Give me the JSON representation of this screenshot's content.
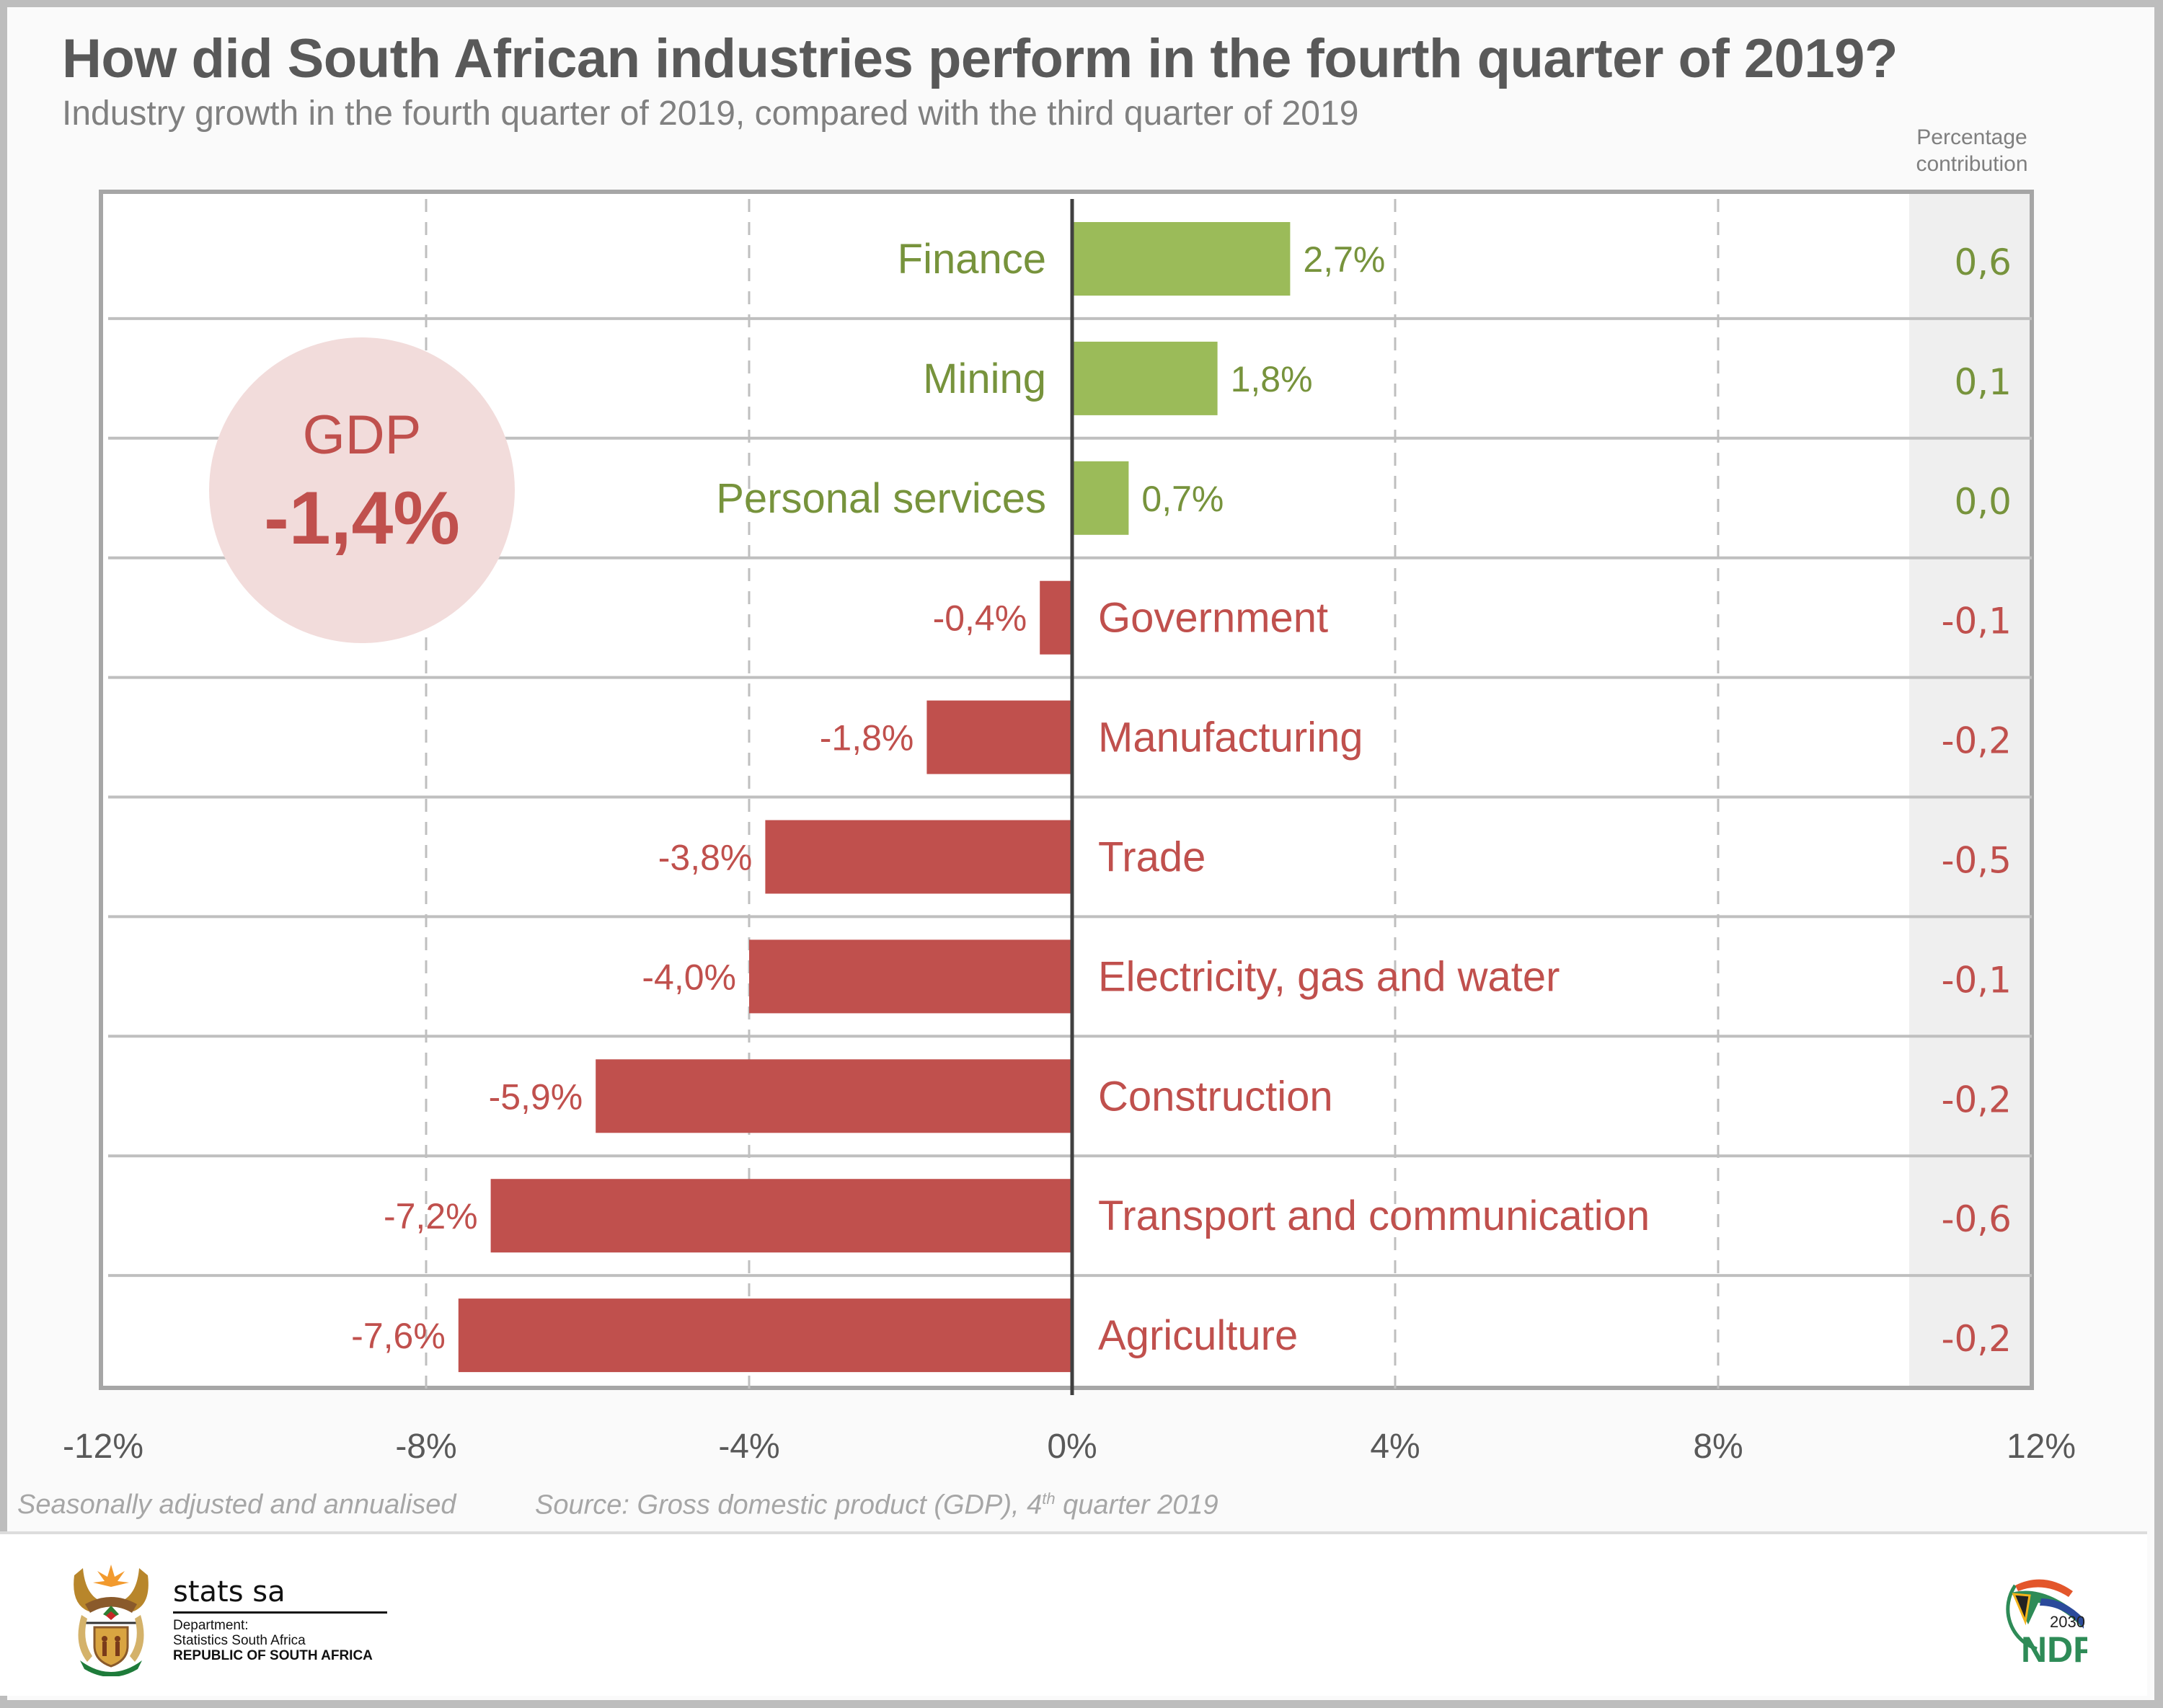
{
  "title": "How did South African industries perform in the fourth quarter of 2019?",
  "subtitle": "Industry growth in the fourth quarter of 2019, compared with the third quarter of 2019",
  "contribution_header": [
    "Percentage",
    "contribution"
  ],
  "gdp_badge": {
    "label": "GDP",
    "value": "-1,4%"
  },
  "footnotes": {
    "left": "Seasonally adjusted and annualised",
    "right_prefix": "Source: Gross domestic product (GDP), 4",
    "right_sup": "th",
    "right_suffix": " quarter 2019"
  },
  "footer": {
    "org_name": "stats sa",
    "dept_line1": "Department:",
    "dept_line2": "Statistics South Africa",
    "dept_line3": "REPUBLIC OF SOUTH AFRICA",
    "coat_of_arms_motto": "!KE E: /XARRA //KE",
    "ndp_logo_year": "2030",
    "ndp_logo_text": "NDP"
  },
  "colors": {
    "positive_bar": "#9bbb59",
    "positive_text": "#77933c",
    "negative_bar": "#c0504d",
    "negative_text": "#c0504d",
    "title": "#595959",
    "gdp_circle": "#f2dcdb"
  },
  "chart_data": {
    "type": "bar",
    "orientation": "horizontal",
    "title": "How did South African industries perform in the fourth quarter of 2019?",
    "subtitle": "Industry growth in the fourth quarter of 2019, compared with the third quarter of 2019",
    "xlabel": "",
    "ylabel": "",
    "xlim": [
      -12,
      12
    ],
    "xticks": [
      -12,
      -8,
      -4,
      0,
      4,
      8,
      12
    ],
    "xtick_labels": [
      "-12%",
      "-8%",
      "-4%",
      "0%",
      "4%",
      "8%",
      "12%"
    ],
    "grid": "vertical dashed at ticks",
    "categories": [
      "Finance",
      "Mining",
      "Personal services",
      "Government",
      "Manufacturing",
      "Trade",
      "Electricity, gas and water",
      "Construction",
      "Transport and communication",
      "Agriculture"
    ],
    "values": [
      2.7,
      1.8,
      0.7,
      -0.4,
      -1.8,
      -3.8,
      -4.0,
      -5.9,
      -7.2,
      -7.6
    ],
    "value_labels": [
      "2,7%",
      "1,8%",
      "0,7%",
      "-0,4%",
      "-1,8%",
      "-3,8%",
      "-4,0%",
      "-5,9%",
      "-7,2%",
      "-7,6%"
    ],
    "contribution_values": [
      0.6,
      0.1,
      0.0,
      -0.1,
      -0.2,
      -0.5,
      -0.1,
      -0.2,
      -0.6,
      -0.2
    ],
    "contribution_labels": [
      "0,6",
      "0,1",
      "0,0",
      "-0,1",
      "-0,2",
      "-0,5",
      "-0,1",
      "-0,2",
      "-0,6",
      "-0,2"
    ],
    "annotation": "GDP -1,4%"
  }
}
